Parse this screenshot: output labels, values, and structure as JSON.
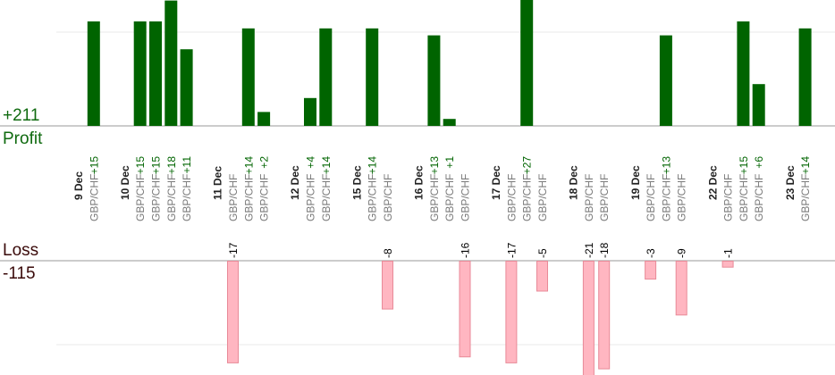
{
  "summary": {
    "profit_total": "+211",
    "profit_label": "Profit",
    "loss_label": "Loss",
    "loss_total": "-115"
  },
  "colors": {
    "profit_bar": "#006400",
    "profit_text": "#006400",
    "loss_bar": "#ffb6c1",
    "loss_bar_border": "#e88a98",
    "loss_text": "#000000",
    "date_text": "#222222",
    "pair_text": "#7a7a7a",
    "grid": "#e8e8e8",
    "baseline": "#999999"
  },
  "chart_data": {
    "type": "bar",
    "grid": true,
    "columns": [
      {
        "date": "9 Dec"
      },
      {
        "pair": "GBP/CHF",
        "value": 15,
        "label": "+15"
      },
      {
        "pair": ""
      },
      {
        "date": "10 Dec"
      },
      {
        "pair": "GBP/CHF",
        "value": 15,
        "label": "+15"
      },
      {
        "pair": "GBP/CHF",
        "value": 15,
        "label": "+15"
      },
      {
        "pair": "GBP/CHF",
        "value": 18,
        "label": "+18"
      },
      {
        "pair": "GBP/CHF",
        "value": 11,
        "label": "+11"
      },
      {
        "pair": ""
      },
      {
        "date": "11 Dec"
      },
      {
        "pair": "GBP/CHF",
        "value": -17,
        "label": "-17"
      },
      {
        "pair": "GBP/CHF",
        "value": 14,
        "label": "+14"
      },
      {
        "pair": "GBP/CHF",
        "value": 2,
        "label": "+2"
      },
      {
        "pair": ""
      },
      {
        "date": "12 Dec"
      },
      {
        "pair": "GBP/CHF",
        "value": 4,
        "label": "+4"
      },
      {
        "pair": "GBP/CHF",
        "value": 14,
        "label": "+14"
      },
      {
        "pair": ""
      },
      {
        "date": "15 Dec"
      },
      {
        "pair": "GBP/CHF",
        "value": 14,
        "label": "+14"
      },
      {
        "pair": "GBP/CHF",
        "value": -8,
        "label": "-8"
      },
      {
        "pair": ""
      },
      {
        "date": "16 Dec"
      },
      {
        "pair": "GBP/CHF",
        "value": 13,
        "label": "+13"
      },
      {
        "pair": "GBP/CHF",
        "value": 1,
        "label": "+1"
      },
      {
        "pair": "GBP/CHF",
        "value": -16,
        "label": "-16"
      },
      {
        "pair": ""
      },
      {
        "date": "17 Dec"
      },
      {
        "pair": "GBP/CHF",
        "value": -17,
        "label": "-17"
      },
      {
        "pair": "GBP/CHF",
        "value": 27,
        "label": "+27"
      },
      {
        "pair": "GBP/CHF",
        "value": -5,
        "label": "-5"
      },
      {
        "pair": ""
      },
      {
        "date": "18 Dec"
      },
      {
        "pair": "GBP/CHF",
        "value": -21,
        "label": "-21"
      },
      {
        "pair": "GBP/CHF",
        "value": -18,
        "label": "-18"
      },
      {
        "pair": ""
      },
      {
        "date": "19 Dec"
      },
      {
        "pair": "GBP/CHF",
        "value": -3,
        "label": "-3"
      },
      {
        "pair": "GBP/CHF",
        "value": 13,
        "label": "+13"
      },
      {
        "pair": "GBP/CHF",
        "value": -9,
        "label": "-9"
      },
      {
        "pair": ""
      },
      {
        "date": "22 Dec"
      },
      {
        "pair": "GBP/CHF",
        "value": -1,
        "label": "-1"
      },
      {
        "pair": "GBP/CHF",
        "value": 15,
        "label": "+15"
      },
      {
        "pair": "GBP/CHF",
        "value": 6,
        "label": "+6"
      },
      {
        "pair": ""
      },
      {
        "date": "23 Dec"
      },
      {
        "pair": "GBP/CHF",
        "value": 14,
        "label": "+14"
      }
    ]
  }
}
